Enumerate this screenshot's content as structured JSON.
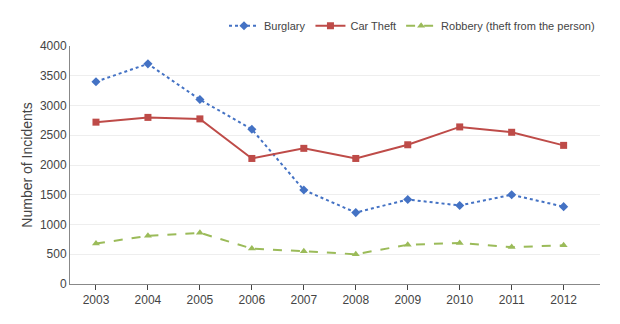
{
  "chart_data": {
    "type": "line",
    "x": [
      2003,
      2004,
      2005,
      2006,
      2007,
      2008,
      2009,
      2010,
      2011,
      2012
    ],
    "series": [
      {
        "name": "Burglary",
        "color": "#4472C4",
        "marker": "diamond",
        "line_style": "dotted",
        "values": [
          3400,
          3700,
          3100,
          2600,
          1580,
          1200,
          1420,
          1320,
          1500,
          1300
        ]
      },
      {
        "name": "Car Theft",
        "color": "#BE4B48",
        "marker": "square",
        "line_style": "solid",
        "values": [
          2720,
          2800,
          2775,
          2110,
          2280,
          2110,
          2340,
          2640,
          2550,
          2330
        ]
      },
      {
        "name": "Robbery (theft from the person)",
        "color": "#9BBB59",
        "marker": "triangle-up",
        "line_style": "dashed",
        "values": [
          680,
          810,
          860,
          595,
          550,
          500,
          660,
          690,
          620,
          650
        ]
      }
    ],
    "ylabel": "Number of Incidents",
    "xlim": [
      2002.5,
      2012.7
    ],
    "xticks": [
      2003,
      2004,
      2005,
      2006,
      2007,
      2008,
      2009,
      2010,
      2011,
      2012
    ],
    "ylim": [
      0,
      4000
    ],
    "yticks": [
      0,
      500,
      1000,
      1500,
      2000,
      2500,
      3000,
      3500,
      4000
    ],
    "grid": "y",
    "legend": "top right"
  }
}
